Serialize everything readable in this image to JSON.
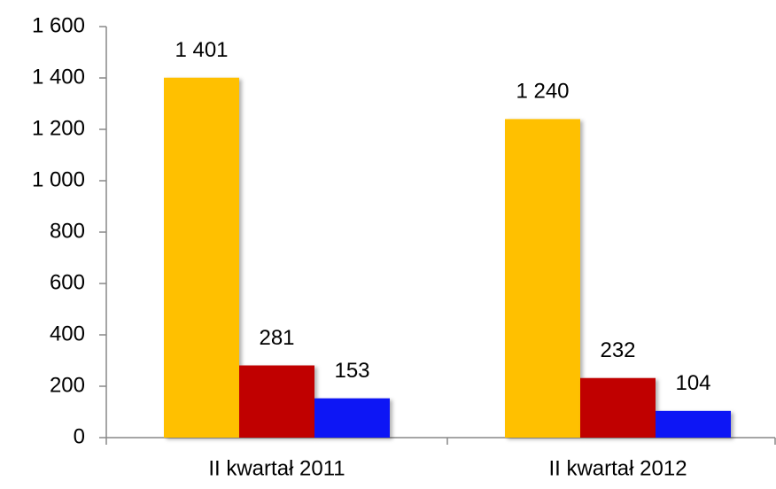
{
  "chart_data": {
    "type": "bar",
    "categories": [
      "II kwartał 2011",
      "II kwartał 2012"
    ],
    "series": [
      {
        "color": "#FFC000",
        "values": [
          1401,
          1240
        ],
        "value_labels": [
          "1 401",
          "1 240"
        ]
      },
      {
        "color": "#C00000",
        "values": [
          281,
          232
        ]
      },
      {
        "color": "#0A14F5",
        "values": [
          153,
          104
        ]
      }
    ],
    "ylim": [
      0,
      1600
    ],
    "yticks": [
      0,
      200,
      400,
      600,
      800,
      {
        "value": 1000,
        "label": "1 000"
      },
      {
        "value": 1200,
        "label": "1 200"
      },
      {
        "value": 1400,
        "label": "1 400"
      },
      {
        "value": 1600,
        "label": "1 600"
      }
    ],
    "grid": false
  }
}
